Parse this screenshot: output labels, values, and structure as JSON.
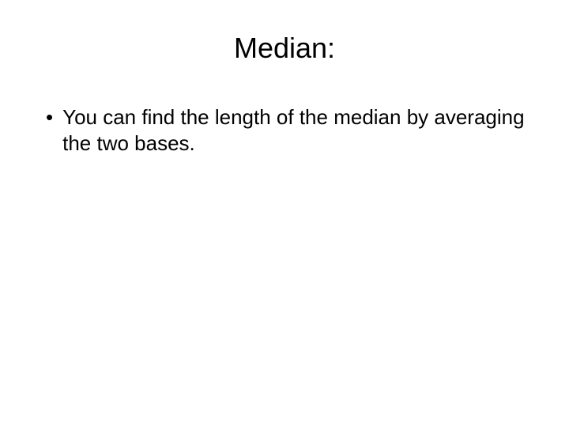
{
  "slide": {
    "title": "Median:",
    "bullets": [
      {
        "marker": "•",
        "text": "You can find the length of the median by averaging the two bases."
      }
    ],
    "background_color": "#ffffff",
    "text_color": "#000000",
    "title_fontsize": 36,
    "body_fontsize": 26,
    "font_family": "Arial"
  }
}
